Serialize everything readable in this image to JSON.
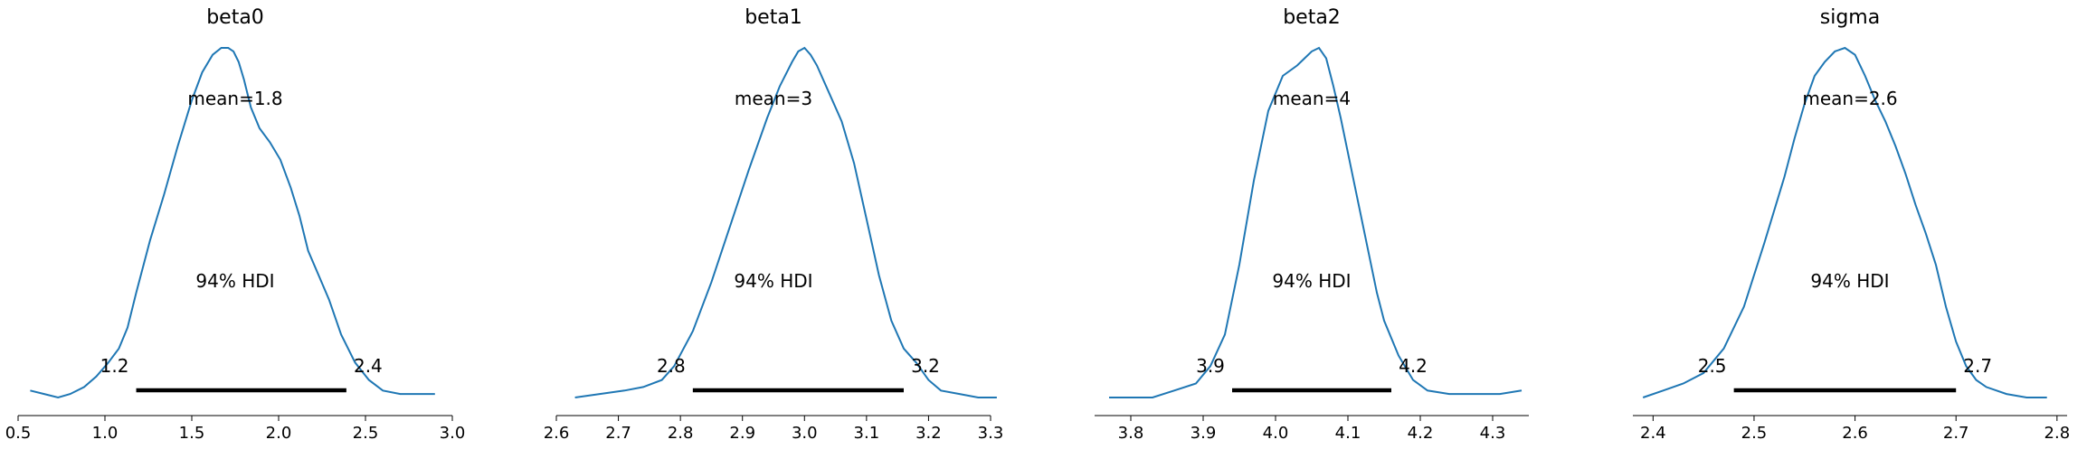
{
  "chart_data": [
    {
      "type": "line",
      "title": "beta0",
      "mean_label": "mean=1.8",
      "hdi_label": "94% HDI",
      "hdi": {
        "low": 1.18,
        "high": 2.39,
        "low_label": "1.2",
        "high_label": "2.4"
      },
      "xlim": [
        0.5,
        3.0
      ],
      "ticks": [
        0.5,
        1.0,
        1.5,
        2.0,
        2.5,
        3.0
      ],
      "tick_labels": [
        "0.5",
        "1.0",
        "1.5",
        "2.0",
        "2.5",
        "3.0"
      ],
      "x": [
        0.57,
        0.65,
        0.73,
        0.8,
        0.88,
        0.95,
        1.02,
        1.08,
        1.13,
        1.18,
        1.26,
        1.34,
        1.42,
        1.5,
        1.56,
        1.62,
        1.67,
        1.71,
        1.74,
        1.77,
        1.8,
        1.84,
        1.89,
        1.95,
        2.01,
        2.07,
        2.12,
        2.17,
        2.23,
        2.29,
        2.36,
        2.44,
        2.52,
        2.6,
        2.7,
        2.8,
        2.9
      ],
      "y": [
        0.02,
        0.01,
        0.0,
        0.01,
        0.03,
        0.06,
        0.1,
        0.14,
        0.2,
        0.3,
        0.45,
        0.58,
        0.72,
        0.85,
        0.93,
        0.98,
        1.0,
        1.0,
        0.99,
        0.96,
        0.91,
        0.83,
        0.77,
        0.73,
        0.68,
        0.6,
        0.52,
        0.42,
        0.35,
        0.28,
        0.18,
        0.1,
        0.05,
        0.02,
        0.01,
        0.01,
        0.01
      ]
    },
    {
      "type": "line",
      "title": "beta1",
      "mean_label": "mean=3",
      "hdi_label": "94% HDI",
      "hdi": {
        "low": 2.82,
        "high": 3.16,
        "low_label": "2.8",
        "high_label": "3.2"
      },
      "xlim": [
        2.6,
        3.3
      ],
      "ticks": [
        2.6,
        2.7,
        2.8,
        2.9,
        3.0,
        3.1,
        3.2,
        3.3
      ],
      "tick_labels": [
        "2.6",
        "2.7",
        "2.8",
        "2.9",
        "3.0",
        "3.1",
        "3.2",
        "3.3"
      ],
      "x": [
        2.63,
        2.67,
        2.71,
        2.74,
        2.77,
        2.79,
        2.82,
        2.85,
        2.88,
        2.91,
        2.94,
        2.96,
        2.98,
        2.99,
        3.0,
        3.01,
        3.02,
        3.04,
        3.06,
        3.08,
        3.1,
        3.12,
        3.14,
        3.16,
        3.18,
        3.2,
        3.22,
        3.25,
        3.28,
        3.31
      ],
      "y": [
        0.0,
        0.01,
        0.02,
        0.03,
        0.05,
        0.09,
        0.19,
        0.33,
        0.49,
        0.65,
        0.8,
        0.89,
        0.96,
        0.99,
        1.0,
        0.98,
        0.95,
        0.87,
        0.79,
        0.67,
        0.51,
        0.35,
        0.22,
        0.14,
        0.1,
        0.05,
        0.02,
        0.01,
        0.0,
        0.0
      ]
    },
    {
      "type": "line",
      "title": "beta2",
      "mean_label": "mean=4",
      "hdi_label": "94% HDI",
      "hdi": {
        "low": 3.94,
        "high": 4.16,
        "low_label": "3.9",
        "high_label": "4.2"
      },
      "xlim": [
        3.75,
        4.35
      ],
      "ticks": [
        3.8,
        3.9,
        4.0,
        4.1,
        4.2,
        4.3
      ],
      "tick_labels": [
        "3.8",
        "3.9",
        "4.0",
        "4.1",
        "4.2",
        "4.3"
      ],
      "x": [
        3.77,
        3.8,
        3.83,
        3.86,
        3.89,
        3.91,
        3.93,
        3.95,
        3.97,
        3.99,
        4.01,
        4.03,
        4.04,
        4.05,
        4.06,
        4.07,
        4.08,
        4.09,
        4.1,
        4.11,
        4.12,
        4.13,
        4.14,
        4.15,
        4.17,
        4.19,
        4.21,
        4.24,
        4.27,
        4.31,
        4.34
      ],
      "y": [
        0.0,
        0.0,
        0.0,
        0.02,
        0.04,
        0.09,
        0.18,
        0.38,
        0.62,
        0.82,
        0.92,
        0.95,
        0.97,
        0.99,
        1.0,
        0.97,
        0.89,
        0.8,
        0.7,
        0.6,
        0.5,
        0.4,
        0.3,
        0.22,
        0.12,
        0.05,
        0.02,
        0.01,
        0.01,
        0.01,
        0.02
      ]
    },
    {
      "type": "line",
      "title": "sigma",
      "mean_label": "mean=2.6",
      "hdi_label": "94% HDI",
      "hdi": {
        "low": 2.48,
        "high": 2.7,
        "low_label": "2.5",
        "high_label": "2.7"
      },
      "xlim": [
        2.38,
        2.81
      ],
      "ticks": [
        2.4,
        2.5,
        2.6,
        2.7,
        2.8
      ],
      "tick_labels": [
        "2.4",
        "2.5",
        "2.6",
        "2.7",
        "2.8"
      ],
      "x": [
        2.39,
        2.41,
        2.43,
        2.45,
        2.47,
        2.49,
        2.51,
        2.53,
        2.54,
        2.55,
        2.56,
        2.57,
        2.58,
        2.59,
        2.6,
        2.61,
        2.62,
        2.63,
        2.64,
        2.65,
        2.66,
        2.67,
        2.68,
        2.69,
        2.7,
        2.71,
        2.72,
        2.73,
        2.75,
        2.77,
        2.79
      ],
      "y": [
        0.0,
        0.02,
        0.04,
        0.07,
        0.14,
        0.26,
        0.44,
        0.63,
        0.74,
        0.84,
        0.92,
        0.96,
        0.99,
        1.0,
        0.98,
        0.92,
        0.85,
        0.79,
        0.72,
        0.64,
        0.55,
        0.47,
        0.38,
        0.26,
        0.16,
        0.09,
        0.05,
        0.03,
        0.01,
        0.0,
        0.0
      ]
    }
  ]
}
